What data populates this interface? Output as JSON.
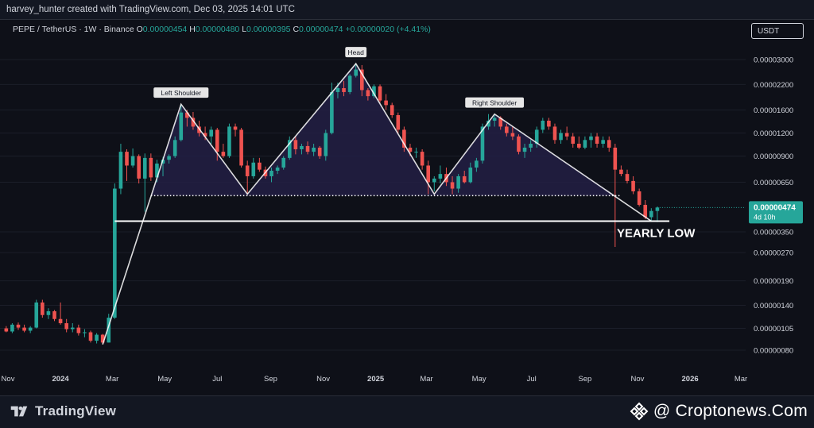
{
  "header": {
    "attribution": "harvey_hunter created with TradingView.com, Dec 03, 2025 14:01 UTC"
  },
  "legend": {
    "symbol": "PEPE / TetherUS · 1W · Binance",
    "open_label": "O",
    "open": "0.00000454",
    "high_label": "H",
    "high": "0.00000480",
    "low_label": "L",
    "low": "0.00000395",
    "close_label": "C",
    "close": "0.00000474",
    "change": "+0.00000020 (+4.41%)"
  },
  "currency": "USDT",
  "price_tag": {
    "price": "0.00000474",
    "countdown": "4d 10h"
  },
  "footer": {
    "brand": "TradingView",
    "watermark": "@ Croptonews.Com"
  },
  "colors": {
    "background": "#0e1018",
    "up": "#26a69a",
    "down": "#ef5350",
    "pattern_fill": "#221f44",
    "line": "#ffffff",
    "accent": "#26a69a"
  },
  "icons": {
    "brand": "tradingview-logo-icon",
    "watermark": "binance-diamond-icon"
  },
  "chart_data": {
    "type": "candlestick",
    "title": "",
    "scale": "log",
    "y_ticks": [
      "0.00003000",
      "0.00002200",
      "0.00001600",
      "0.00001200",
      "0.00000900",
      "0.00000650",
      "0.00000350",
      "0.00000270",
      "0.00000190",
      "0.00000140",
      "0.00000105",
      "0.00000080"
    ],
    "x_ticks": [
      "Nov",
      "2024",
      "Mar",
      "May",
      "Jul",
      "Sep",
      "Nov",
      "2025",
      "Mar",
      "May",
      "Jul",
      "Sep",
      "Nov",
      "2026",
      "Mar"
    ],
    "annotations": {
      "left_shoulder": "Left Shoulder",
      "head": "Head",
      "right_shoulder": "Right Shoulder",
      "yearly_low": "YEARLY LOW"
    },
    "levels": {
      "neckline": 5.5e-06,
      "yearly_low": 4e-06
    },
    "pattern_points": [
      {
        "date": "2024-02-19",
        "price": 8.6e-07
      },
      {
        "date": "2024-05-20",
        "price": 1.72e-05
      },
      {
        "date": "2024-08-05",
        "price": 5.6e-06
      },
      {
        "date": "2024-12-09",
        "price": 2.85e-05
      },
      {
        "date": "2025-03-10",
        "price": 5.6e-06
      },
      {
        "date": "2025-05-19",
        "price": 1.52e-05
      },
      {
        "date": "2025-11-17",
        "price": 4e-06
      }
    ],
    "candles": [
      [
        "2023-10-30",
        1.05e-06,
        1.08e-06,
        1e-06,
        1.01e-06
      ],
      [
        "2023-11-06",
        1.01e-06,
        1.12e-06,
        9.9e-07,
        1.1e-06
      ],
      [
        "2023-11-13",
        1.1e-06,
        1.13e-06,
        1.03e-06,
        1.06e-06
      ],
      [
        "2023-11-20",
        1.06e-06,
        1.1e-06,
        1e-06,
        1.02e-06
      ],
      [
        "2023-11-27",
        1.02e-06,
        1.08e-06,
        9.9e-07,
        1.06e-06
      ],
      [
        "2023-12-04",
        1.06e-06,
        1.5e-06,
        1.05e-06,
        1.45e-06
      ],
      [
        "2023-12-11",
        1.45e-06,
        1.5e-06,
        1.2e-06,
        1.24e-06
      ],
      [
        "2023-12-18",
        1.24e-06,
        1.35e-06,
        1.18e-06,
        1.3e-06
      ],
      [
        "2023-12-25",
        1.3e-06,
        1.32e-06,
        1.15e-06,
        1.18e-06
      ],
      [
        "2024-01-01",
        1.18e-06,
        1.45e-06,
        1.1e-06,
        1.12e-06
      ],
      [
        "2024-01-08",
        1.12e-06,
        1.18e-06,
        1e-06,
        1.04e-06
      ],
      [
        "2024-01-15",
        1.04e-06,
        1.12e-06,
        1e-06,
        1.06e-06
      ],
      [
        "2024-01-22",
        1.06e-06,
        1.1e-06,
        9.6e-07,
        9.9e-07
      ],
      [
        "2024-01-29",
        9.9e-07,
        1.04e-06,
        9.4e-07,
        1e-06
      ],
      [
        "2024-02-05",
        1e-06,
        1.02e-06,
        8.8e-07,
        9e-07
      ],
      [
        "2024-02-12",
        9e-07,
        9.9e-07,
        8.7e-07,
        9.7e-07
      ],
      [
        "2024-02-19",
        9.7e-07,
        9.8e-07,
        8.6e-07,
        8.8e-07
      ],
      [
        "2024-02-26",
        8.8e-07,
        1.26e-06,
        8.8e-07,
        1.2e-06
      ],
      [
        "2024-03-04",
        1.2e-06,
        6.4e-06,
        1.18e-06,
        6e-06
      ],
      [
        "2024-03-11",
        6e-06,
        1.05e-05,
        5.6e-06,
        9.5e-06
      ],
      [
        "2024-03-18",
        9.5e-06,
        9.8e-06,
        6.6e-06,
        8e-06
      ],
      [
        "2024-03-25",
        8e-06,
        9.9e-06,
        7.8e-06,
        9e-06
      ],
      [
        "2024-04-01",
        9e-06,
        9.2e-06,
        6.4e-06,
        6.8e-06
      ],
      [
        "2024-04-08",
        6.8e-06,
        9.3e-06,
        4.5e-06,
        8.8e-06
      ],
      [
        "2024-04-15",
        8.8e-06,
        9.3e-06,
        6.6e-06,
        6.9e-06
      ],
      [
        "2024-04-22",
        6.9e-06,
        8.6e-06,
        6.5e-06,
        8.2e-06
      ],
      [
        "2024-04-29",
        8.2e-06,
        8.9e-06,
        7e-06,
        8.6e-06
      ],
      [
        "2024-05-06",
        8.6e-06,
        9.2e-06,
        8.2e-06,
        9e-06
      ],
      [
        "2024-05-13",
        9e-06,
        1.15e-05,
        8.8e-06,
        1.1e-05
      ],
      [
        "2024-05-20",
        1.1e-05,
        1.72e-05,
        1.08e-05,
        1.55e-05
      ],
      [
        "2024-05-27",
        1.55e-05,
        1.6e-05,
        1.3e-05,
        1.45e-05
      ],
      [
        "2024-06-03",
        1.45e-05,
        1.56e-05,
        1.25e-05,
        1.3e-05
      ],
      [
        "2024-06-10",
        1.3e-05,
        1.4e-05,
        1.15e-05,
        1.2e-05
      ],
      [
        "2024-06-17",
        1.2e-05,
        1.3e-05,
        1.1e-05,
        1.15e-05
      ],
      [
        "2024-06-24",
        1.15e-05,
        1.3e-05,
        1.05e-05,
        1.25e-05
      ],
      [
        "2024-07-01",
        1.25e-05,
        1.28e-05,
        8.5e-06,
        9.5e-06
      ],
      [
        "2024-07-08",
        9.5e-06,
        1.05e-05,
        8.8e-06,
        9e-06
      ],
      [
        "2024-07-15",
        9e-06,
        1.35e-05,
        8.8e-06,
        1.3e-05
      ],
      [
        "2024-07-22",
        1.3e-05,
        1.35e-05,
        1.15e-05,
        1.25e-05
      ],
      [
        "2024-07-29",
        1.25e-05,
        1.28e-05,
        7.8e-06,
        8e-06
      ],
      [
        "2024-08-05",
        8e-06,
        8.5e-06,
        5.6e-06,
        7e-06
      ],
      [
        "2024-08-12",
        7e-06,
        8.8e-06,
        6.8e-06,
        8.3e-06
      ],
      [
        "2024-08-19",
        8.3e-06,
        8.8e-06,
        7.4e-06,
        7.6e-06
      ],
      [
        "2024-08-26",
        7.6e-06,
        7.9e-06,
        6.8e-06,
        7e-06
      ],
      [
        "2024-09-02",
        7e-06,
        7.8e-06,
        6.5e-06,
        7.5e-06
      ],
      [
        "2024-09-09",
        7.5e-06,
        8e-06,
        7.2e-06,
        7.8e-06
      ],
      [
        "2024-09-16",
        7.8e-06,
        9e-06,
        7.6e-06,
        8.8e-06
      ],
      [
        "2024-09-23",
        8.8e-06,
        1.15e-05,
        8.6e-06,
        1.1e-05
      ],
      [
        "2024-09-30",
        1.1e-05,
        1.15e-05,
        9.2e-06,
        9.8e-06
      ],
      [
        "2024-10-07",
        9.8e-06,
        1.05e-05,
        9.2e-06,
        1.02e-05
      ],
      [
        "2024-10-14",
        1.02e-05,
        1.08e-05,
        9.2e-06,
        9.5e-06
      ],
      [
        "2024-10-21",
        9.5e-06,
        1.05e-05,
        9e-06,
        1e-05
      ],
      [
        "2024-10-28",
        1e-05,
        1.02e-05,
        8.7e-06,
        9e-06
      ],
      [
        "2024-11-04",
        9e-06,
        1.25e-05,
        8.5e-06,
        1.2e-05
      ],
      [
        "2024-11-11",
        1.2e-05,
        2.25e-05,
        1.18e-05,
        2e-05
      ],
      [
        "2024-11-18",
        2e-05,
        2.25e-05,
        1.85e-05,
        2.1e-05
      ],
      [
        "2024-11-25",
        2.1e-05,
        2.3e-05,
        1.9e-05,
        2e-05
      ],
      [
        "2024-12-02",
        2e-05,
        2.5e-05,
        1.95e-05,
        2.45e-05
      ],
      [
        "2024-12-09",
        2.45e-05,
        2.85e-05,
        2.4e-05,
        2.65e-05
      ],
      [
        "2024-12-16",
        2.65e-05,
        2.8e-05,
        1.9e-05,
        2.05e-05
      ],
      [
        "2024-12-23",
        2.05e-05,
        2.1e-05,
        1.8e-05,
        1.9e-05
      ],
      [
        "2024-12-30",
        1.9e-05,
        2.2e-05,
        1.85e-05,
        2.15e-05
      ],
      [
        "2025-01-06",
        2.15e-05,
        2.2e-05,
        1.75e-05,
        1.8e-05
      ],
      [
        "2025-01-13",
        1.8e-05,
        1.95e-05,
        1.6e-05,
        1.7e-05
      ],
      [
        "2025-01-20",
        1.7e-05,
        1.75e-05,
        1.45e-05,
        1.5e-05
      ],
      [
        "2025-01-27",
        1.5e-05,
        1.55e-05,
        1.2e-05,
        1.25e-05
      ],
      [
        "2025-02-03",
        1.25e-05,
        1.3e-05,
        9.5e-06,
        1e-05
      ],
      [
        "2025-02-10",
        1e-05,
        1.05e-05,
        9e-06,
        9.5e-06
      ],
      [
        "2025-02-17",
        9.5e-06,
        1e-05,
        8.8e-06,
        9.5e-06
      ],
      [
        "2025-02-24",
        9.5e-06,
        9.8e-06,
        7.6e-06,
        8e-06
      ],
      [
        "2025-03-03",
        8e-06,
        8.5e-06,
        5.6e-06,
        6.5e-06
      ],
      [
        "2025-03-10",
        6.5e-06,
        7e-06,
        5.8e-06,
        6.8e-06
      ],
      [
        "2025-03-17",
        6.8e-06,
        8e-06,
        6.4e-06,
        7.2e-06
      ],
      [
        "2025-03-24",
        7.2e-06,
        7.8e-06,
        6.2e-06,
        6.5e-06
      ],
      [
        "2025-03-31",
        6.5e-06,
        7e-06,
        5.6e-06,
        6e-06
      ],
      [
        "2025-04-07",
        6e-06,
        7.2e-06,
        5.7e-06,
        7e-06
      ],
      [
        "2025-04-14",
        7e-06,
        7.5e-06,
        6.4e-06,
        6.5e-06
      ],
      [
        "2025-04-21",
        6.5e-06,
        8.3e-06,
        6.4e-06,
        7.8e-06
      ],
      [
        "2025-04-28",
        7.8e-06,
        8.8e-06,
        7.4e-06,
        8.5e-06
      ],
      [
        "2025-05-05",
        8.5e-06,
        1.35e-05,
        8.2e-06,
        1.3e-05
      ],
      [
        "2025-05-12",
        1.3e-05,
        1.52e-05,
        1.25e-05,
        1.4e-05
      ],
      [
        "2025-05-19",
        1.4e-05,
        1.5e-05,
        1.3e-05,
        1.45e-05
      ],
      [
        "2025-05-26",
        1.45e-05,
        1.48e-05,
        1.25e-05,
        1.3e-05
      ],
      [
        "2025-06-02",
        1.3e-05,
        1.35e-05,
        1.15e-05,
        1.2e-05
      ],
      [
        "2025-06-09",
        1.2e-05,
        1.3e-05,
        1.1e-05,
        1.15e-05
      ],
      [
        "2025-06-16",
        1.15e-05,
        1.18e-05,
        9.2e-06,
        9.5e-06
      ],
      [
        "2025-06-23",
        9.5e-06,
        1.05e-05,
        8.8e-06,
        1e-05
      ],
      [
        "2025-06-30",
        1e-05,
        1.1e-05,
        9.5e-06,
        1.05e-05
      ],
      [
        "2025-07-07",
        1.05e-05,
        1.3e-05,
        1e-05,
        1.25e-05
      ],
      [
        "2025-07-14",
        1.25e-05,
        1.45e-05,
        1.2e-05,
        1.4e-05
      ],
      [
        "2025-07-21",
        1.4e-05,
        1.45e-05,
        1.25e-05,
        1.3e-05
      ],
      [
        "2025-07-28",
        1.3e-05,
        1.35e-05,
        1.05e-05,
        1.1e-05
      ],
      [
        "2025-08-04",
        1.1e-05,
        1.25e-05,
        1.05e-05,
        1.2e-05
      ],
      [
        "2025-08-11",
        1.2e-05,
        1.3e-05,
        1.1e-05,
        1.15e-05
      ],
      [
        "2025-08-18",
        1.15e-05,
        1.2e-05,
        1e-05,
        1.05e-05
      ],
      [
        "2025-08-25",
        1.05e-05,
        1.15e-05,
        9.8e-06,
        1e-05
      ],
      [
        "2025-09-01",
        1e-05,
        1.15e-05,
        9.8e-06,
        1.1e-05
      ],
      [
        "2025-09-08",
        1.1e-05,
        1.2e-05,
        1e-05,
        1.15e-05
      ],
      [
        "2025-09-15",
        1.15e-05,
        1.2e-05,
        1e-05,
        1.05e-05
      ],
      [
        "2025-09-22",
        1.05e-05,
        1.15e-05,
        1e-05,
        1.1e-05
      ],
      [
        "2025-09-29",
        1.1e-05,
        1.15e-05,
        9.5e-06,
        1e-05
      ],
      [
        "2025-10-06",
        1e-05,
        1.05e-05,
        2.9e-06,
        7.6e-06
      ],
      [
        "2025-10-13",
        7.6e-06,
        8e-06,
        7e-06,
        7.2e-06
      ],
      [
        "2025-10-20",
        7.2e-06,
        7.6e-06,
        6.4e-06,
        6.6e-06
      ],
      [
        "2025-10-27",
        6.6e-06,
        7e-06,
        5.6e-06,
        5.8e-06
      ],
      [
        "2025-11-03",
        5.8e-06,
        6e-06,
        4.8e-06,
        4.9e-06
      ],
      [
        "2025-11-10",
        4.9e-06,
        5.2e-06,
        4.1e-06,
        4.2e-06
      ],
      [
        "2025-11-17",
        4.2e-06,
        4.7e-06,
        4e-06,
        4.54e-06
      ],
      [
        "2025-11-24",
        4.54e-06,
        4.8e-06,
        3.95e-06,
        4.74e-06
      ]
    ]
  }
}
